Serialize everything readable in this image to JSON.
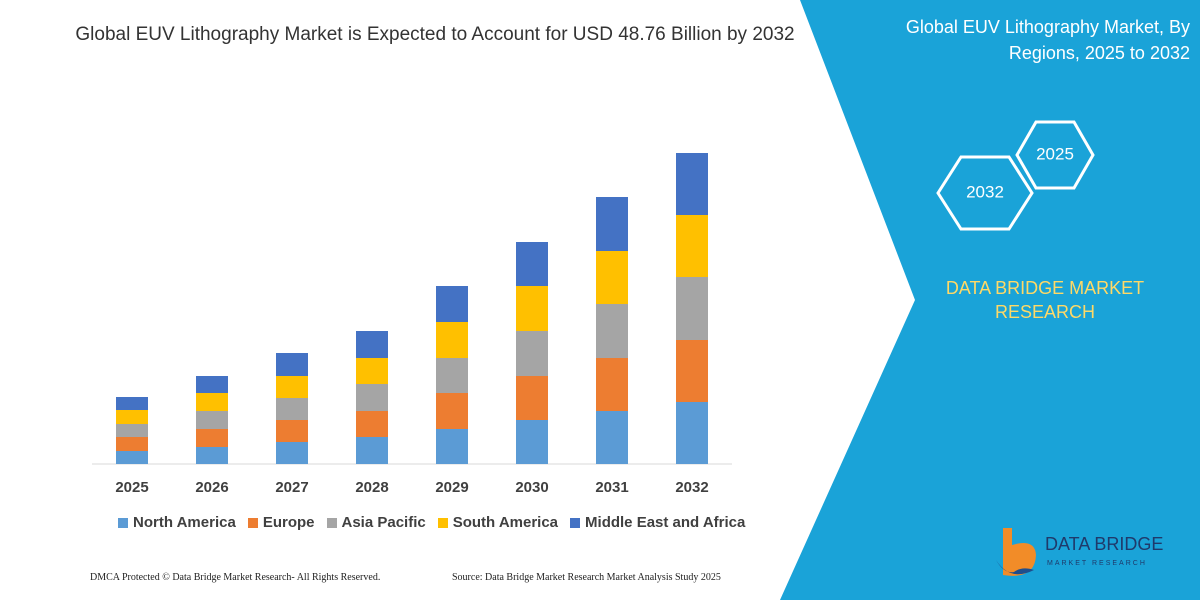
{
  "chart_data": {
    "type": "stacked_bar",
    "title": "Global EUV Lithography Market is Expected to Account for USD 48.76 Billion by 2032",
    "categories": [
      "2025",
      "2026",
      "2027",
      "2028",
      "2029",
      "2030",
      "2031",
      "2032"
    ],
    "series": [
      {
        "name": "North America",
        "color": "#5b9bd5",
        "values": [
          13,
          17,
          22,
          27,
          35,
          44,
          53,
          62
        ]
      },
      {
        "name": "Europe",
        "color": "#ed7d31",
        "values": [
          14,
          18,
          22,
          26,
          36,
          44,
          53,
          62
        ]
      },
      {
        "name": "Asia Pacific",
        "color": "#a5a5a5",
        "values": [
          13,
          18,
          22,
          27,
          35,
          45,
          54,
          63
        ]
      },
      {
        "name": "South America",
        "color": "#ffc000",
        "values": [
          14,
          18,
          22,
          26,
          36,
          45,
          53,
          62
        ]
      },
      {
        "name": "Middle East and Africa",
        "color": "#4472c4",
        "values": [
          13,
          17,
          23,
          27,
          36,
          44,
          54,
          62
        ]
      }
    ],
    "ylim": [
      0,
      320
    ]
  },
  "panel": {
    "title": "Global EUV Lithography Market, By Regions, 2025 to 2032",
    "hexagons": [
      "2025",
      "2032"
    ],
    "brand": "DATA BRIDGE MARKET RESEARCH"
  },
  "logo": {
    "name": "DATA BRIDGE",
    "tagline": "MARKET RESEARCH"
  },
  "footer": {
    "left": "DMCA Protected © Data Bridge Market Research-  All Rights Reserved.",
    "right": "Source: Data Bridge Market Research  Market Analysis Study 2025"
  }
}
